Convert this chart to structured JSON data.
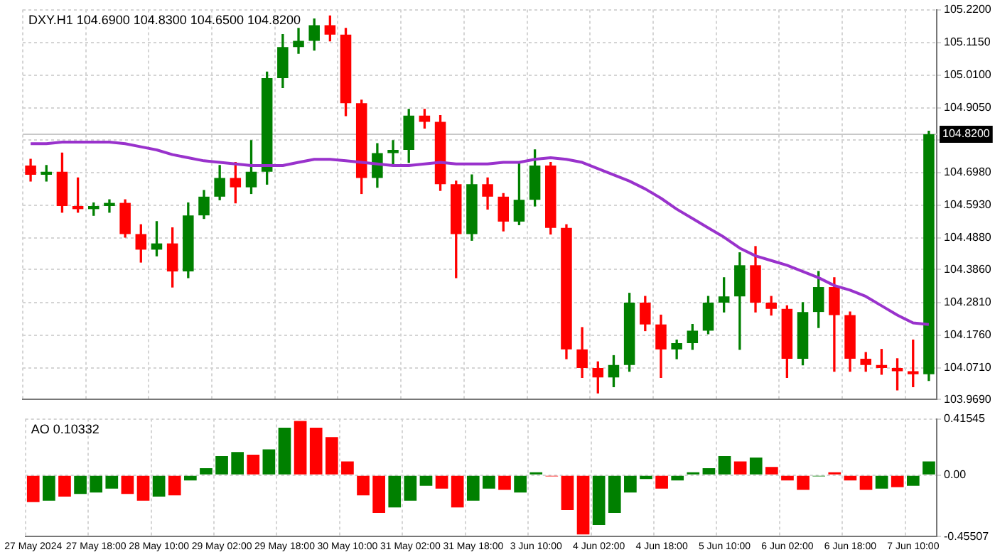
{
  "chart_data": [
    {
      "type": "candlestick",
      "title": "DXY.H1 104.6900 104.8300 104.6500 104.8200",
      "categories": [
        null,
        null,
        null,
        null,
        null,
        null,
        null,
        null,
        null,
        null,
        null,
        null,
        null,
        null,
        null,
        null,
        null,
        null,
        null,
        null,
        null,
        null,
        null,
        null,
        null,
        null,
        null,
        null,
        null,
        null,
        null,
        null,
        null,
        null,
        null,
        null,
        null,
        null,
        null,
        null,
        null,
        null,
        null,
        null,
        null,
        null,
        null,
        null,
        null,
        null,
        null,
        null,
        null,
        null,
        null,
        null,
        null,
        null
      ],
      "ohlc": [
        [
          104.72,
          104.74,
          104.67,
          104.69
        ],
        [
          104.69,
          104.72,
          104.67,
          104.7
        ],
        [
          104.7,
          104.76,
          104.57,
          104.59
        ],
        [
          104.59,
          104.68,
          104.57,
          104.58
        ],
        [
          104.58,
          104.6,
          104.56,
          104.59
        ],
        [
          104.59,
          104.61,
          104.57,
          104.6
        ],
        [
          104.6,
          104.61,
          104.49,
          104.5
        ],
        [
          104.5,
          104.53,
          104.41,
          104.45
        ],
        [
          104.45,
          104.54,
          104.43,
          104.47
        ],
        [
          104.47,
          104.52,
          104.33,
          104.38
        ],
        [
          104.38,
          104.6,
          104.36,
          104.56
        ],
        [
          104.56,
          104.64,
          104.55,
          104.62
        ],
        [
          104.62,
          104.72,
          104.61,
          104.68
        ],
        [
          104.68,
          104.73,
          104.6,
          104.65
        ],
        [
          104.65,
          104.8,
          104.63,
          104.7
        ],
        [
          104.7,
          105.02,
          104.66,
          105.0
        ],
        [
          105.0,
          105.14,
          104.97,
          105.1
        ],
        [
          105.1,
          105.16,
          105.08,
          105.12
        ],
        [
          105.12,
          105.19,
          105.09,
          105.17
        ],
        [
          105.17,
          105.2,
          105.12,
          105.14
        ],
        [
          105.14,
          105.16,
          104.88,
          104.92
        ],
        [
          104.92,
          104.93,
          104.63,
          104.68
        ],
        [
          104.68,
          104.79,
          104.65,
          104.76
        ],
        [
          104.76,
          104.8,
          104.72,
          104.77
        ],
        [
          104.77,
          104.9,
          104.73,
          104.88
        ],
        [
          104.88,
          104.9,
          104.84,
          104.86
        ],
        [
          104.86,
          104.88,
          104.64,
          104.66
        ],
        [
          104.66,
          104.67,
          104.36,
          104.5
        ],
        [
          104.5,
          104.69,
          104.48,
          104.66
        ],
        [
          104.66,
          104.68,
          104.58,
          104.62
        ],
        [
          104.62,
          104.63,
          104.51,
          104.54
        ],
        [
          104.54,
          104.73,
          104.53,
          104.61
        ],
        [
          104.61,
          104.77,
          104.59,
          104.72
        ],
        [
          104.72,
          104.73,
          104.5,
          104.52
        ],
        [
          104.52,
          104.53,
          104.1,
          104.13
        ],
        [
          104.13,
          104.2,
          104.04,
          104.07
        ],
        [
          104.07,
          104.09,
          103.99,
          104.04
        ],
        [
          104.04,
          104.11,
          104.01,
          104.08
        ],
        [
          104.08,
          104.31,
          104.06,
          104.28
        ],
        [
          104.28,
          104.3,
          104.19,
          104.21
        ],
        [
          104.21,
          104.24,
          104.04,
          104.13
        ],
        [
          104.13,
          104.16,
          104.1,
          104.15
        ],
        [
          104.15,
          104.21,
          104.13,
          104.19
        ],
        [
          104.19,
          104.3,
          104.18,
          104.28
        ],
        [
          104.28,
          104.36,
          104.25,
          104.3
        ],
        [
          104.3,
          104.44,
          104.13,
          104.4
        ],
        [
          104.4,
          104.46,
          104.25,
          104.28
        ],
        [
          104.28,
          104.3,
          104.24,
          104.26
        ],
        [
          104.26,
          104.27,
          104.04,
          104.1
        ],
        [
          104.1,
          104.28,
          104.08,
          104.25
        ],
        [
          104.25,
          104.38,
          104.2,
          104.33
        ],
        [
          104.33,
          104.36,
          104.06,
          104.24
        ],
        [
          104.24,
          104.25,
          104.06,
          104.1
        ],
        [
          104.1,
          104.12,
          104.06,
          104.08
        ],
        [
          104.08,
          104.13,
          104.05,
          104.07
        ],
        [
          104.07,
          104.1,
          104.0,
          104.06
        ],
        [
          104.06,
          104.16,
          104.01,
          104.05
        ],
        [
          104.05,
          104.83,
          104.03,
          104.82
        ]
      ],
      "colors": [
        "#ff0000",
        "#008000",
        "#ff0000",
        "#ff0000",
        "#008000",
        "#008000",
        "#ff0000",
        "#ff0000",
        "#008000",
        "#ff0000",
        "#008000",
        "#008000",
        "#008000",
        "#ff0000",
        "#008000",
        "#008000",
        "#008000",
        "#008000",
        "#008000",
        "#ff0000",
        "#ff0000",
        "#ff0000",
        "#008000",
        "#008000",
        "#008000",
        "#ff0000",
        "#ff0000",
        "#ff0000",
        "#008000",
        "#ff0000",
        "#ff0000",
        "#008000",
        "#008000",
        "#ff0000",
        "#ff0000",
        "#ff0000",
        "#ff0000",
        "#008000",
        "#008000",
        "#ff0000",
        "#ff0000",
        "#008000",
        "#008000",
        "#008000",
        "#008000",
        "#008000",
        "#ff0000",
        "#ff0000",
        "#ff0000",
        "#008000",
        "#008000",
        "#ff0000",
        "#ff0000",
        "#ff0000",
        "#ff0000",
        "#ff0000",
        "#ff0000",
        "#008000"
      ],
      "series": [
        {
          "type": "line",
          "color": "#9932cc",
          "values": [
            104.79,
            104.79,
            104.795,
            104.795,
            104.795,
            104.795,
            104.79,
            104.78,
            104.77,
            104.755,
            104.745,
            104.735,
            104.73,
            104.725,
            104.72,
            104.72,
            104.72,
            104.73,
            104.74,
            104.74,
            104.735,
            104.73,
            104.725,
            104.72,
            104.72,
            104.725,
            104.73,
            104.725,
            104.725,
            104.725,
            104.73,
            104.73,
            104.74,
            104.745,
            104.74,
            104.73,
            104.71,
            104.69,
            104.67,
            104.645,
            104.615,
            104.58,
            104.55,
            104.52,
            104.49,
            104.455,
            104.43,
            104.415,
            104.4,
            104.38,
            104.36,
            104.335,
            104.32,
            104.3,
            104.27,
            104.24,
            104.215,
            104.21
          ]
        }
      ],
      "ylim": [
        103.969,
        105.22
      ],
      "yticks": [
        {
          "value": 105.22,
          "label": "105.2200"
        },
        {
          "value": 105.115,
          "label": "105.1150"
        },
        {
          "value": 105.01,
          "label": "105.0100"
        },
        {
          "value": 104.905,
          "label": "104.9050"
        },
        {
          "value": 104.803,
          "label": null
        },
        {
          "value": 104.698,
          "label": "104.6980"
        },
        {
          "value": 104.593,
          "label": "104.5930"
        },
        {
          "value": 104.488,
          "label": "104.4880"
        },
        {
          "value": 104.386,
          "label": "104.3860"
        },
        {
          "value": 104.281,
          "label": "104.2810"
        },
        {
          "value": 104.176,
          "label": "104.1760"
        },
        {
          "value": 104.071,
          "label": "104.0710"
        },
        {
          "value": 103.969,
          "label": "103.9690"
        }
      ],
      "ref_lines": [
        {
          "axis": "y",
          "value": 104.82,
          "label": "104.8200",
          "color": "#c8c8c8"
        }
      ],
      "grid": true,
      "tick_labels": "y",
      "marker": "none"
    },
    {
      "type": "bar",
      "title": "AO 0.10332",
      "categories": [
        "27 May 2024",
        null,
        null,
        null,
        "27 May 18:00",
        null,
        null,
        null,
        "28 May 10:00",
        null,
        null,
        null,
        "29 May 02:00",
        null,
        null,
        null,
        "29 May 18:00",
        null,
        null,
        null,
        "30 May 10:00",
        null,
        null,
        null,
        "31 May 02:00",
        null,
        null,
        null,
        "31 May 18:00",
        null,
        null,
        null,
        "3 Jun 10:00",
        null,
        null,
        null,
        "4 Jun 02:00",
        null,
        null,
        null,
        "4 Jun 18:00",
        null,
        null,
        null,
        "5 Jun 10:00",
        null,
        null,
        null,
        "6 Jun 02:00",
        null,
        null,
        null,
        "6 Jun 18:00",
        null,
        null,
        null,
        "7 Jun 10:00",
        null
      ],
      "values": [
        -0.2,
        -0.19,
        -0.16,
        -0.14,
        -0.13,
        -0.1,
        -0.14,
        -0.19,
        -0.16,
        -0.15,
        -0.04,
        0.05,
        0.14,
        0.17,
        0.15,
        0.19,
        0.35,
        0.4,
        0.35,
        0.28,
        0.1,
        -0.15,
        -0.28,
        -0.24,
        -0.19,
        -0.08,
        -0.1,
        -0.24,
        -0.19,
        -0.1,
        -0.11,
        -0.13,
        0.02,
        -0.01,
        -0.26,
        -0.44,
        -0.37,
        -0.28,
        -0.13,
        -0.03,
        -0.1,
        -0.04,
        0.02,
        0.05,
        0.14,
        0.1,
        0.13,
        0.06,
        -0.04,
        -0.11,
        -0.01,
        0.02,
        -0.04,
        -0.11,
        -0.1,
        -0.09,
        -0.08,
        0.1
      ],
      "colors": [
        "#ff0000",
        "#008000",
        "#ff0000",
        "#008000",
        "#008000",
        "#008000",
        "#ff0000",
        "#ff0000",
        "#008000",
        "#ff0000",
        "#008000",
        "#008000",
        "#008000",
        "#008000",
        "#ff0000",
        "#008000",
        "#008000",
        "#ff0000",
        "#ff0000",
        "#ff0000",
        "#ff0000",
        "#ff0000",
        "#ff0000",
        "#008000",
        "#008000",
        "#008000",
        "#ff0000",
        "#ff0000",
        "#008000",
        "#008000",
        "#ff0000",
        "#008000",
        "#008000",
        "#ff0000",
        "#ff0000",
        "#ff0000",
        "#008000",
        "#008000",
        "#008000",
        "#008000",
        "#ff0000",
        "#008000",
        "#008000",
        "#008000",
        "#008000",
        "#ff0000",
        "#008000",
        "#ff0000",
        "#ff0000",
        "#ff0000",
        "#008000",
        "#ff0000",
        "#ff0000",
        "#ff0000",
        "#008000",
        "#ff0000",
        "#008000",
        "#008000"
      ],
      "ylim": [
        -0.45507,
        0.41545
      ],
      "yticks": [
        {
          "value": 0.41545,
          "label": "0.41545"
        },
        {
          "value": 0,
          "label": "0.00"
        },
        {
          "value": -0.45507,
          "label": "-0.45507"
        }
      ],
      "grid": true
    }
  ]
}
